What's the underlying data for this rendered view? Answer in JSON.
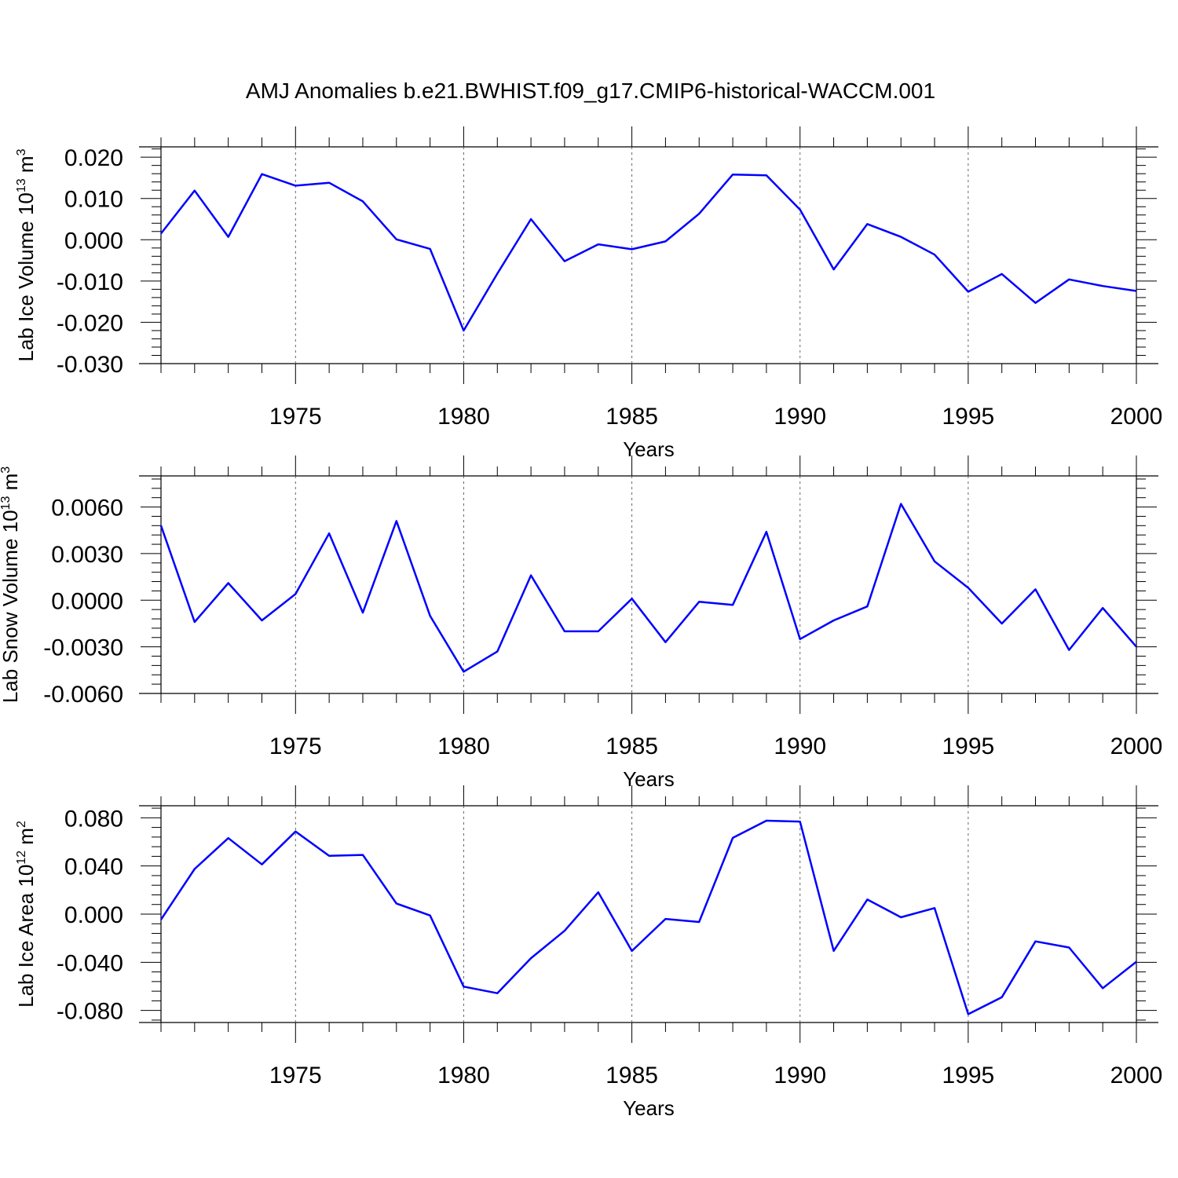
{
  "title": "AMJ Anomalies b.e21.BWHIST.f09_g17.CMIP6-historical-WACCM.001",
  "colors": {
    "line": "#0000ff",
    "axis": "#000000",
    "grid": "#666666"
  },
  "chart_data": [
    {
      "type": "line",
      "xlabel": "Years",
      "ylabel": {
        "text": "Lab Ice Volume 10",
        "exp": "13",
        "unit": " m",
        "unit_exp": "3"
      },
      "xlim": [
        1971,
        2000
      ],
      "ylim": [
        -0.03,
        0.0225
      ],
      "yticks": [
        0.02,
        0.01,
        0.0,
        -0.01,
        -0.02,
        -0.03
      ],
      "ytick_labels": [
        "0.020",
        "0.010",
        "0.000",
        "-0.010",
        "-0.020",
        "-0.030"
      ],
      "xticks": [
        1975,
        1980,
        1985,
        1990,
        1995,
        2000
      ],
      "xtick_labels": [
        "1975",
        "1980",
        "1985",
        "1990",
        "1995",
        "2000"
      ],
      "grid": "vertical-dashed",
      "x": [
        1971,
        1972,
        1973,
        1974,
        1975,
        1976,
        1977,
        1978,
        1979,
        1980,
        1981,
        1982,
        1983,
        1984,
        1985,
        1986,
        1987,
        1988,
        1989,
        1990,
        1991,
        1992,
        1993,
        1994,
        1995,
        1996,
        1997,
        1998,
        1999,
        2000
      ],
      "y": [
        0.0015,
        0.0119,
        0.0007,
        0.0159,
        0.0131,
        0.0138,
        0.0093,
        0.0001,
        -0.0022,
        -0.022,
        -0.0082,
        0.005,
        -0.0052,
        -0.0011,
        -0.0023,
        -0.0004,
        0.0063,
        0.0158,
        0.0156,
        0.0073,
        -0.0072,
        0.0038,
        0.0007,
        -0.0036,
        -0.0126,
        -0.0083,
        -0.0153,
        -0.0096,
        -0.0112,
        -0.0124
      ]
    },
    {
      "type": "line",
      "xlabel": "Years",
      "ylabel": {
        "text": "Lab Snow Volume 10",
        "exp": "13",
        "unit": " m",
        "unit_exp": "3"
      },
      "xlim": [
        1971,
        2000
      ],
      "ylim": [
        -0.006,
        0.008
      ],
      "yticks": [
        0.006,
        0.003,
        0.0,
        -0.003,
        -0.006
      ],
      "ytick_labels": [
        "0.0060",
        "0.0030",
        "0.0000",
        "-0.0030",
        "-0.0060"
      ],
      "xticks": [
        1975,
        1980,
        1985,
        1990,
        1995,
        2000
      ],
      "xtick_labels": [
        "1975",
        "1980",
        "1985",
        "1990",
        "1995",
        "2000"
      ],
      "grid": "vertical-dashed",
      "x": [
        1971,
        1972,
        1973,
        1974,
        1975,
        1976,
        1977,
        1978,
        1979,
        1980,
        1981,
        1982,
        1983,
        1984,
        1985,
        1986,
        1987,
        1988,
        1989,
        1990,
        1991,
        1992,
        1993,
        1994,
        1995,
        1996,
        1997,
        1998,
        1999,
        2000
      ],
      "y": [
        0.0048,
        -0.0014,
        0.0011,
        -0.0013,
        0.0004,
        0.0043,
        -0.0008,
        0.0051,
        -0.001,
        -0.0046,
        -0.0033,
        0.0016,
        -0.002,
        -0.002,
        0.0001,
        -0.0027,
        -0.0001,
        -0.0003,
        0.0044,
        -0.0025,
        -0.0013,
        -0.0004,
        0.0062,
        0.0025,
        0.0008,
        -0.0015,
        0.0007,
        -0.0032,
        -0.0005,
        -0.003
      ]
    },
    {
      "type": "line",
      "xlabel": "Years",
      "ylabel": {
        "text": "Lab Ice Area 10",
        "exp": "12",
        "unit": " m",
        "unit_exp": "2"
      },
      "xlim": [
        1971,
        2000
      ],
      "ylim": [
        -0.09,
        0.09
      ],
      "yticks": [
        0.08,
        0.04,
        0.0,
        -0.04,
        -0.08
      ],
      "ytick_labels": [
        "0.080",
        "0.040",
        "0.000",
        "-0.040",
        "-0.080"
      ],
      "xticks": [
        1975,
        1980,
        1985,
        1990,
        1995,
        2000
      ],
      "xtick_labels": [
        "1975",
        "1980",
        "1985",
        "1990",
        "1995",
        "2000"
      ],
      "grid": "vertical-dashed",
      "x": [
        1971,
        1972,
        1973,
        1974,
        1975,
        1976,
        1977,
        1978,
        1979,
        1980,
        1981,
        1982,
        1983,
        1984,
        1985,
        1986,
        1987,
        1988,
        1989,
        1990,
        1991,
        1992,
        1993,
        1994,
        1995,
        1996,
        1997,
        1998,
        1999,
        2000
      ],
      "y": [
        -0.0045,
        0.0375,
        0.0631,
        0.0413,
        0.0686,
        0.0484,
        0.0492,
        0.0088,
        -0.0011,
        -0.0602,
        -0.0657,
        -0.0366,
        -0.0138,
        0.0181,
        -0.0306,
        -0.004,
        -0.0065,
        0.0633,
        0.0776,
        0.0768,
        -0.0305,
        0.0121,
        -0.0026,
        0.005,
        -0.0831,
        -0.069,
        -0.0226,
        -0.0277,
        -0.0615,
        -0.0395
      ]
    }
  ]
}
